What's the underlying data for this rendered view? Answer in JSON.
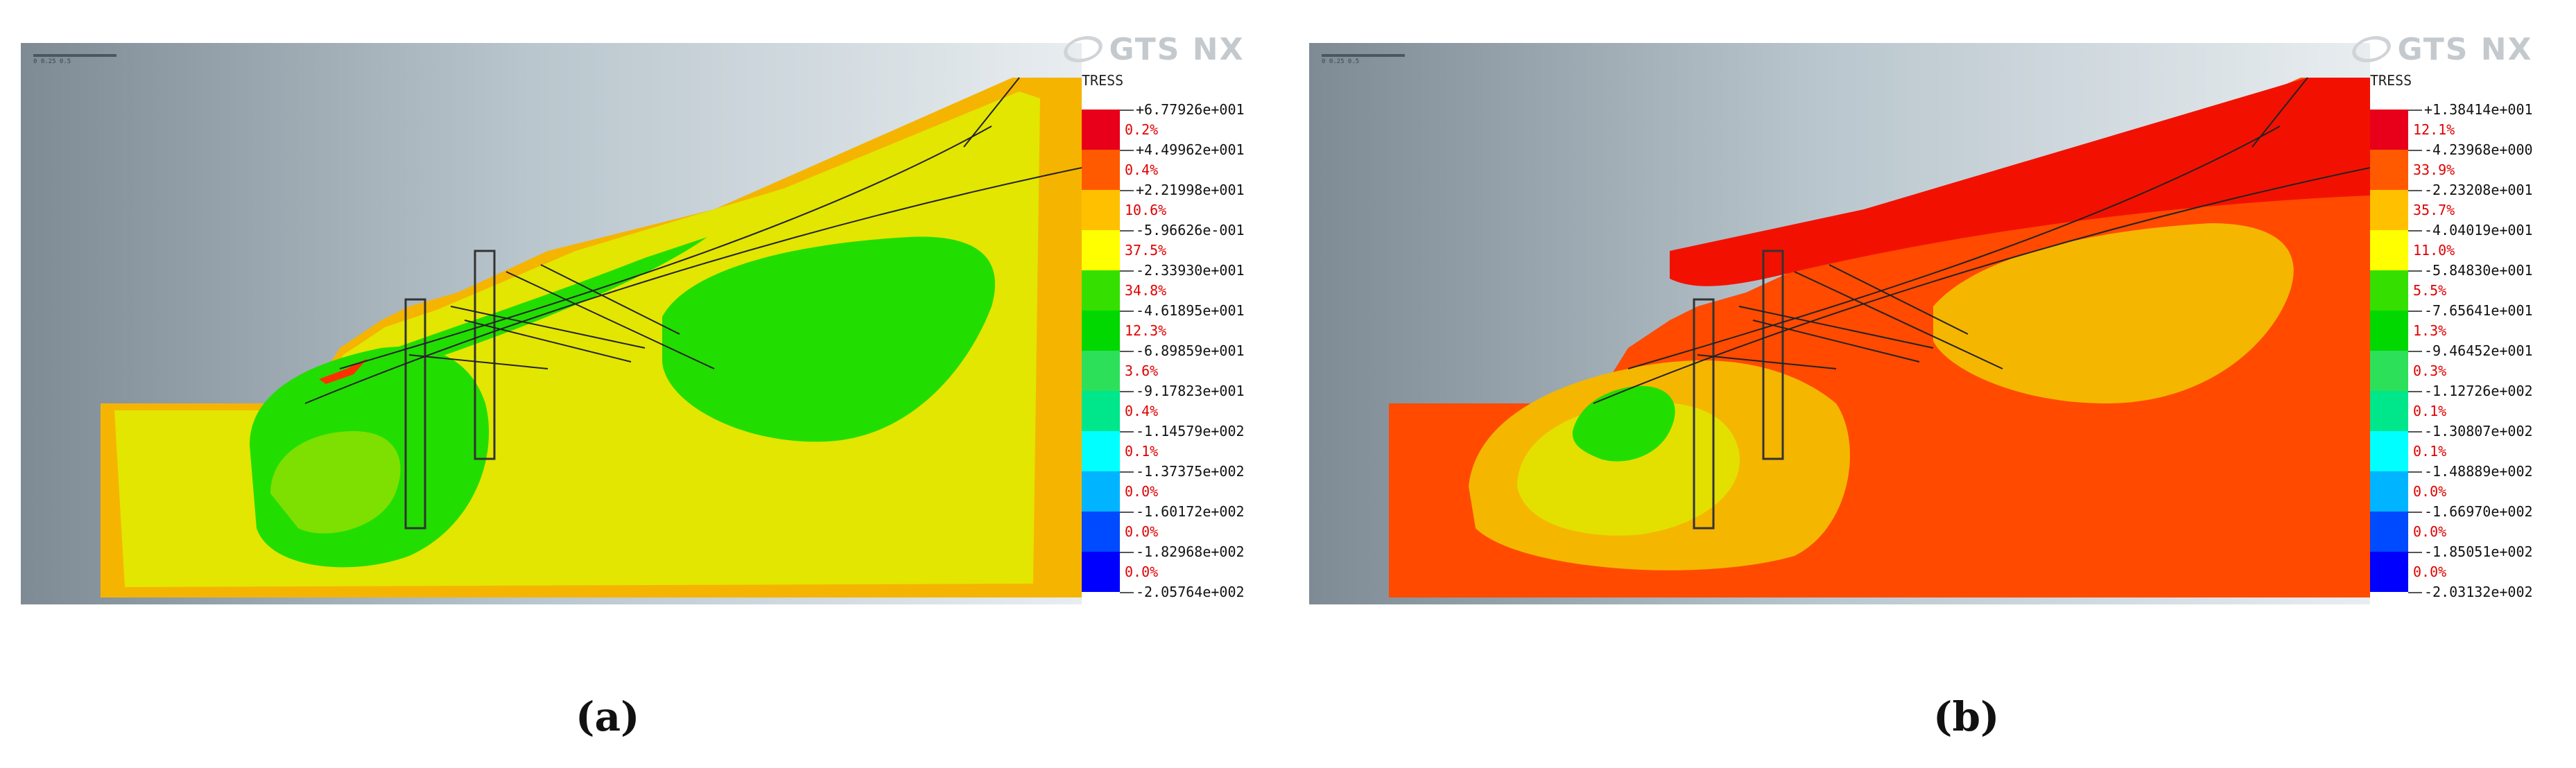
{
  "panels": [
    {
      "id": "a",
      "caption": "(a)",
      "logo_text": "GTS NX",
      "legend_title": "TRESS",
      "scale_ticks": "0     0.25     0.5",
      "legend_values": [
        "+6.77926e+001",
        "+4.49962e+001",
        "+2.21998e+001",
        "-5.96626e-001",
        "-2.33930e+001",
        "-4.61895e+001",
        "-6.89859e+001",
        "-9.17823e+001",
        "-1.14579e+002",
        "-1.37375e+002",
        "-1.60172e+002",
        "-1.82968e+002",
        "-2.05764e+002"
      ],
      "legend_percents": [
        "0.2%",
        "0.4%",
        "10.6%",
        "37.5%",
        "34.8%",
        "12.3%",
        "3.6%",
        "0.4%",
        "0.1%",
        "0.0%",
        "0.0%",
        "0.0%"
      ],
      "legend_colors": [
        "#e8001a",
        "#ff5a00",
        "#ffc000",
        "#ffff00",
        "#35e000",
        "#00d800",
        "#2de05a",
        "#00e68a",
        "#00ffff",
        "#00b4ff",
        "#004aff",
        "#0000ff"
      ]
    },
    {
      "id": "b",
      "caption": "(b)",
      "logo_text": "GTS NX",
      "legend_title": "TRESS",
      "scale_ticks": "0     0.25     0.5",
      "legend_values": [
        "+1.38414e+001",
        "-4.23968e+000",
        "-2.23208e+001",
        "-4.04019e+001",
        "-5.84830e+001",
        "-7.65641e+001",
        "-9.46452e+001",
        "-1.12726e+002",
        "-1.30807e+002",
        "-1.48889e+002",
        "-1.66970e+002",
        "-1.85051e+002",
        "-2.03132e+002"
      ],
      "legend_percents": [
        "12.1%",
        "33.9%",
        "35.7%",
        "11.0%",
        "5.5%",
        "1.3%",
        "0.3%",
        "0.1%",
        "0.1%",
        "0.0%",
        "0.0%",
        "0.0%"
      ],
      "legend_colors": [
        "#e8001a",
        "#ff5a00",
        "#ffc000",
        "#ffff00",
        "#35e000",
        "#00d800",
        "#2de05a",
        "#00e68a",
        "#00ffff",
        "#00b4ff",
        "#004aff",
        "#0000ff"
      ]
    }
  ],
  "contour_colors": {
    "a": {
      "base": "#e3e600",
      "edge": "#f5b400",
      "low": "#22dd00",
      "light": "#7de000",
      "hot": "#ff3000"
    },
    "b": {
      "base": "#ff4a00",
      "edge": "#f21100",
      "low": "#f5b600",
      "light": "#e3e000",
      "hot": "#22dd00"
    }
  }
}
